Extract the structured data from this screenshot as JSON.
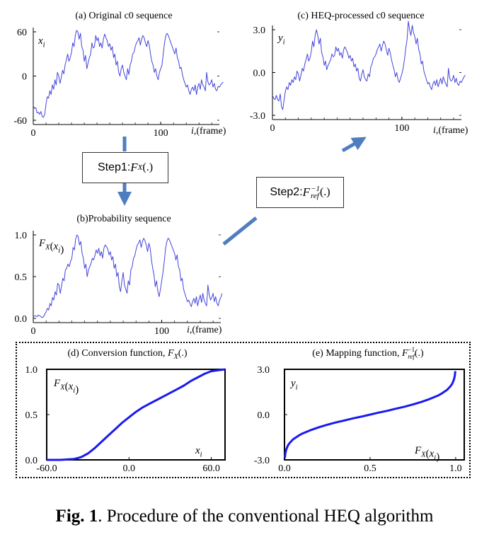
{
  "caption": {
    "label": "Fig. 1",
    "text": ". Procedure of the conventional HEQ algorithm"
  },
  "steps": {
    "step1": "Step1: ",
    "step1_fn": "F",
    "step1_sub": "X",
    "step1_arg": "(.)",
    "step2": "Step2: ",
    "step2_fn": "F",
    "step2_sup": "−1",
    "step2_sub": "ref",
    "step2_arg": " (.)"
  },
  "colors": {
    "line": "#4444dd",
    "curve": "#1a1aee",
    "arrow": "#4f7ec0",
    "axis": "#000000"
  },
  "chart_data": [
    {
      "id": "a",
      "type": "line",
      "title": "(a) Original c0 sequence",
      "ylabel": "x_i",
      "xlabel": "i,(frame)",
      "xlim": [
        0,
        146
      ],
      "ylim": [
        -60,
        60
      ],
      "xticks": [
        0,
        100
      ],
      "yticks": [
        60,
        0,
        -60
      ],
      "ytick_labels": [
        "60",
        "0",
        "-60"
      ],
      "series": [
        {
          "values": [
            -40,
            -44,
            -43,
            -50,
            -49,
            -52,
            -48,
            -55,
            -56,
            -52,
            -38,
            -28,
            -30,
            -20,
            -25,
            -12,
            -18,
            -5,
            -12,
            5,
            0,
            -10,
            -2,
            8,
            3,
            15,
            22,
            30,
            20,
            25,
            32,
            45,
            40,
            55,
            62,
            60,
            50,
            58,
            40,
            35,
            20,
            28,
            10,
            18,
            25,
            30,
            45,
            38,
            40,
            55,
            48,
            52,
            40,
            45,
            38,
            50,
            57,
            52,
            48,
            40,
            44,
            35,
            40,
            25,
            30,
            15,
            20,
            5,
            0,
            10,
            15,
            5,
            0,
            -5,
            10,
            2,
            15,
            20,
            30,
            32,
            40,
            45,
            48,
            52,
            42,
            50,
            55,
            52,
            45,
            40,
            48,
            42,
            30,
            20,
            15,
            5,
            10,
            0,
            -5,
            5,
            10,
            15,
            30,
            45,
            55,
            58,
            55,
            50,
            45,
            40,
            35,
            30,
            38,
            25,
            20,
            10,
            12,
            2,
            -5,
            -10,
            -15,
            -12,
            -20,
            -25,
            -18,
            -15,
            -20,
            -12,
            -25,
            -15,
            -10,
            -18,
            -5,
            -12,
            -15,
            -20,
            5,
            -8,
            -12,
            -10,
            -5,
            -15,
            -10,
            -18,
            -20,
            -14,
            -15,
            -12,
            -10,
            -8
          ]
        }
      ]
    },
    {
      "id": "b",
      "type": "line",
      "title": "(b)Probability sequence",
      "ylabel": "F_X(x_i)",
      "xlabel": "i,(frame)",
      "xlim": [
        0,
        146
      ],
      "ylim": [
        0,
        1
      ],
      "xticks": [
        0,
        100
      ],
      "yticks": [
        1.0,
        0.5,
        0.0
      ],
      "ytick_labels": [
        "1.0",
        "0.5",
        "0.0"
      ],
      "series": [
        {
          "values": [
            0.02,
            0.03,
            0.03,
            0.02,
            0.04,
            0.03,
            0.02,
            0.01,
            0.02,
            0.05,
            0.08,
            0.12,
            0.1,
            0.18,
            0.15,
            0.25,
            0.22,
            0.32,
            0.28,
            0.42,
            0.4,
            0.3,
            0.38,
            0.48,
            0.45,
            0.58,
            0.6,
            0.65,
            0.62,
            0.68,
            0.72,
            0.85,
            0.82,
            0.95,
            1.0,
            0.98,
            0.88,
            0.92,
            0.78,
            0.72,
            0.6,
            0.65,
            0.5,
            0.58,
            0.62,
            0.66,
            0.72,
            0.7,
            0.75,
            0.82,
            0.78,
            0.84,
            0.75,
            0.8,
            0.72,
            0.84,
            0.88,
            0.86,
            0.83,
            0.76,
            0.8,
            0.7,
            0.74,
            0.6,
            0.65,
            0.5,
            0.55,
            0.38,
            0.32,
            0.45,
            0.55,
            0.4,
            0.35,
            0.3,
            0.45,
            0.4,
            0.58,
            0.62,
            0.72,
            0.75,
            0.82,
            0.88,
            0.9,
            0.94,
            0.85,
            0.92,
            0.96,
            0.93,
            0.88,
            0.8,
            0.9,
            0.84,
            0.7,
            0.6,
            0.52,
            0.38,
            0.45,
            0.32,
            0.26,
            0.35,
            0.45,
            0.55,
            0.68,
            0.84,
            0.92,
            0.96,
            0.94,
            0.9,
            0.86,
            0.82,
            0.78,
            0.7,
            0.76,
            0.62,
            0.58,
            0.45,
            0.48,
            0.35,
            0.3,
            0.25,
            0.2,
            0.22,
            0.18,
            0.14,
            0.2,
            0.24,
            0.18,
            0.26,
            0.15,
            0.22,
            0.28,
            0.19,
            0.3,
            0.22,
            0.18,
            0.15,
            0.4,
            0.28,
            0.22,
            0.25,
            0.3,
            0.2,
            0.26,
            0.18,
            0.15,
            0.22,
            0.25,
            0.3
          ]
        }
      ]
    },
    {
      "id": "c",
      "type": "line",
      "title": "(c) HEQ-processed c0 sequence",
      "ylabel": "y_i",
      "xlabel": "i,(frame)",
      "xlim": [
        0,
        146
      ],
      "ylim": [
        -3,
        3
      ],
      "xticks": [
        0,
        100
      ],
      "yticks": [
        3.0,
        0.0,
        -3.0
      ],
      "ytick_labels": [
        "3.0",
        "0.0",
        "-3.0"
      ],
      "series": [
        {
          "values": [
            -1.6,
            -1.8,
            -1.9,
            -1.6,
            -1.9,
            -2.0,
            -1.5,
            -2.4,
            -2.6,
            -1.9,
            -1.3,
            -1.0,
            -1.2,
            -0.7,
            -0.9,
            -0.5,
            -0.7,
            -0.3,
            -0.5,
            0.1,
            -0.1,
            -0.6,
            -0.2,
            0.3,
            0.1,
            0.6,
            0.9,
            1.3,
            0.8,
            1.0,
            1.5,
            2.2,
            1.8,
            2.6,
            3.0,
            2.6,
            2.0,
            2.4,
            1.4,
            1.1,
            0.5,
            0.8,
            0.2,
            0.5,
            0.7,
            0.9,
            1.3,
            1.1,
            1.2,
            1.8,
            1.5,
            1.7,
            1.2,
            1.4,
            1.0,
            1.6,
            1.8,
            1.6,
            1.4,
            1.0,
            1.2,
            0.8,
            1.0,
            0.4,
            0.6,
            0.1,
            0.3,
            -0.4,
            -0.6,
            -0.1,
            0.2,
            -0.3,
            -0.5,
            -0.6,
            -0.1,
            -0.3,
            0.4,
            0.6,
            1.0,
            1.1,
            1.3,
            1.6,
            1.8,
            2.0,
            1.5,
            1.9,
            2.2,
            2.0,
            1.6,
            1.2,
            1.7,
            1.4,
            0.9,
            0.5,
            0.2,
            -0.3,
            0.0,
            -0.5,
            -0.7,
            -0.4,
            -0.1,
            0.3,
            0.9,
            1.7,
            2.3,
            3.6,
            3.0,
            2.6,
            3.3,
            2.8,
            2.5,
            2.0,
            2.4,
            1.6,
            1.3,
            0.6,
            0.8,
            0.1,
            -0.2,
            -0.5,
            -0.8,
            -0.7,
            -1.0,
            -1.2,
            -0.8,
            -0.6,
            -0.9,
            -0.5,
            -1.0,
            -0.7,
            -0.4,
            -0.8,
            -0.3,
            -0.6,
            -0.8,
            -1.0,
            0.3,
            -0.4,
            -0.6,
            -0.5,
            -0.2,
            -0.7,
            -0.4,
            -0.8,
            -0.9,
            -0.6,
            -0.7,
            -0.5,
            -0.3,
            -0.2
          ]
        }
      ]
    },
    {
      "id": "d",
      "type": "line",
      "title": "(d) Conversion function, F_X(.)",
      "ylabel": "F_X(x_i)",
      "xlabel": "x_i",
      "xlim": [
        -60,
        70
      ],
      "ylim": [
        0,
        1
      ],
      "xticks": [
        -60,
        0,
        60
      ],
      "xtick_labels": [
        "-60.0",
        "0.0",
        "60.0"
      ],
      "yticks": [
        1.0,
        0.5,
        0.0
      ],
      "ytick_labels": [
        "1.0",
        "0.5",
        "0.0"
      ],
      "series": [
        {
          "x": [
            -60,
            -50,
            -40,
            -35,
            -30,
            -25,
            -20,
            -15,
            -10,
            -5,
            0,
            5,
            10,
            15,
            20,
            25,
            30,
            35,
            40,
            45,
            50,
            55,
            60,
            65,
            70
          ],
          "values": [
            0.0,
            0.0,
            0.01,
            0.03,
            0.07,
            0.13,
            0.2,
            0.27,
            0.34,
            0.41,
            0.47,
            0.53,
            0.58,
            0.62,
            0.66,
            0.7,
            0.74,
            0.78,
            0.82,
            0.87,
            0.91,
            0.95,
            0.98,
            0.99,
            1.0
          ]
        }
      ]
    },
    {
      "id": "e",
      "type": "line",
      "title": "(e) Mapping function, F_ref^-1(.)",
      "ylabel": "y_i",
      "xlabel": "F_X(x_i)",
      "xlim": [
        0,
        1.05
      ],
      "ylim": [
        -3,
        3
      ],
      "xticks": [
        0,
        0.5,
        1.0
      ],
      "xtick_labels": [
        "0.0",
        "0.5",
        "1.0"
      ],
      "yticks": [
        3.0,
        0.0,
        -3.0
      ],
      "ytick_labels": [
        "3.0",
        "0.0",
        "-3.0"
      ],
      "series": [
        {
          "x": [
            0.002,
            0.005,
            0.01,
            0.02,
            0.03,
            0.05,
            0.08,
            0.1,
            0.15,
            0.2,
            0.25,
            0.3,
            0.35,
            0.4,
            0.45,
            0.5,
            0.55,
            0.6,
            0.65,
            0.7,
            0.75,
            0.8,
            0.85,
            0.9,
            0.92,
            0.95,
            0.97,
            0.98,
            0.99,
            0.995,
            0.998
          ],
          "values": [
            -2.88,
            -2.58,
            -2.33,
            -2.05,
            -1.88,
            -1.64,
            -1.41,
            -1.28,
            -1.04,
            -0.84,
            -0.67,
            -0.52,
            -0.39,
            -0.25,
            -0.13,
            0.0,
            0.13,
            0.25,
            0.39,
            0.52,
            0.67,
            0.84,
            1.04,
            1.28,
            1.41,
            1.64,
            1.88,
            2.05,
            2.33,
            2.58,
            2.88
          ]
        }
      ]
    }
  ]
}
